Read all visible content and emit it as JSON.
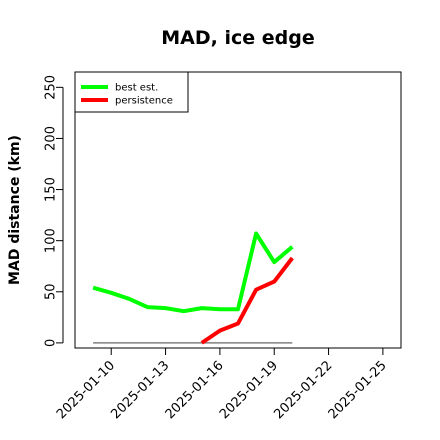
{
  "chart_data": {
    "type": "line",
    "title": "MAD, ice edge",
    "xlabel": "",
    "ylabel": "MAD distance (km)",
    "ylim": [
      -5,
      265
    ],
    "xlim": [
      "2025-01-08",
      "2025-01-26"
    ],
    "yticks": [
      0,
      50,
      100,
      150,
      200,
      250
    ],
    "ytick_labels": [
      "0",
      "50",
      "100",
      "150",
      "200",
      "250"
    ],
    "xticks": [
      "2025-01-10",
      "2025-01-13",
      "2025-01-16",
      "2025-01-19",
      "2025-01-22",
      "2025-01-25"
    ],
    "xtick_labels": [
      "2025-01-10",
      "2025-01-13",
      "2025-01-16",
      "2025-01-19",
      "2025-01-22",
      "2025-01-25"
    ],
    "grid": false,
    "legend_position": "top-left",
    "series": [
      {
        "name": "best est.",
        "color": "#00ff00",
        "points": [
          {
            "x": "2025-01-09",
            "y": 54
          },
          {
            "x": "2025-01-10",
            "y": 49
          },
          {
            "x": "2025-01-11",
            "y": 43
          },
          {
            "x": "2025-01-12",
            "y": 35
          },
          {
            "x": "2025-01-13",
            "y": 34
          },
          {
            "x": "2025-01-14",
            "y": 31
          },
          {
            "x": "2025-01-15",
            "y": 34
          },
          {
            "x": "2025-01-16",
            "y": 33
          },
          {
            "x": "2025-01-17",
            "y": 33
          },
          {
            "x": "2025-01-18",
            "y": 107
          },
          {
            "x": "2025-01-19",
            "y": 79
          },
          {
            "x": "2025-01-20",
            "y": 94
          }
        ]
      },
      {
        "name": "persistence",
        "color": "#ff0000",
        "points": [
          {
            "x": "2025-01-15",
            "y": 0
          },
          {
            "x": "2025-01-16",
            "y": 12
          },
          {
            "x": "2025-01-17",
            "y": 19
          },
          {
            "x": "2025-01-18",
            "y": 52
          },
          {
            "x": "2025-01-19",
            "y": 60
          },
          {
            "x": "2025-01-20",
            "y": 83
          }
        ]
      }
    ],
    "reference_line": {
      "color": "#808080",
      "y": 0,
      "x_start": "2025-01-09",
      "x_end": "2025-01-20"
    }
  }
}
